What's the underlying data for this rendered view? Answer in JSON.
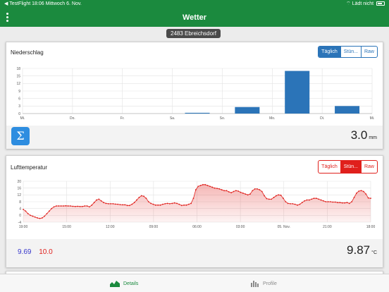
{
  "status": {
    "left": "◀ TestFlight  18:06  Mittwoch 6. Nov.",
    "right": "Lädt nicht"
  },
  "navbar": {
    "title": "Wetter"
  },
  "station": "2483 Ebreichsdorf",
  "precip": {
    "title": "Niederschlag",
    "segments": [
      "Täglich",
      "Stün...",
      "Raw"
    ],
    "total": "3.0",
    "unit": "mm",
    "sum_icon": "Σ"
  },
  "temp": {
    "title": "Lufttemperatur",
    "segments": [
      "Täglich",
      "Stün...",
      "Raw"
    ],
    "current": "9.87",
    "unit": "°C",
    "min": "9.69",
    "max": "10.0"
  },
  "tabs": {
    "details": "Details",
    "profile": "Profile"
  },
  "colors": {
    "brand": "#1b8a3e",
    "bars": "#2b74b8",
    "temp_line": "#e0201c"
  },
  "chart_data": [
    {
      "type": "bar",
      "categories": [
        "Mi.",
        "Do.",
        "Fr.",
        "Sa.",
        "So.",
        "Mo.",
        "Di.",
        "Mi."
      ],
      "values": [
        0,
        0,
        0,
        0,
        0.3,
        2.6,
        17,
        3.0
      ],
      "ylim": [
        0,
        18
      ],
      "yticks": [
        0,
        3,
        6,
        9,
        12,
        15,
        18
      ],
      "grid": true
    },
    {
      "type": "area",
      "x_ticks": [
        "19:00",
        "15:00",
        "12:00",
        "09:00",
        "06:00",
        "03:00",
        "05. Nov.",
        "21:00",
        "18:00"
      ],
      "ylim": [
        -4,
        20
      ],
      "yticks": [
        -4,
        0,
        4,
        8,
        12,
        16,
        20
      ],
      "values": [
        3.5,
        2.5,
        1,
        0,
        -0.5,
        -1,
        -1.5,
        -1.8,
        -1.5,
        -0.5,
        1,
        2.5,
        4,
        5,
        5.5,
        5.5,
        5.5,
        5.5,
        5.6,
        5.5,
        5.5,
        5.3,
        5.2,
        5.3,
        5.2,
        5.2,
        5.5,
        5.5,
        5,
        6,
        7.5,
        9,
        9.5,
        8.5,
        7.5,
        7,
        6.8,
        6.8,
        6.8,
        6.6,
        6.5,
        6.3,
        6.2,
        6.2,
        5.8,
        5.8,
        6.5,
        7.5,
        9,
        10.5,
        11.5,
        11.2,
        10,
        8,
        7,
        6.5,
        6,
        6,
        6,
        6.5,
        6.8,
        7,
        6.8,
        7,
        7.3,
        7,
        6.5,
        5.8,
        6,
        6,
        6.5,
        7,
        10,
        15,
        17,
        17.5,
        18,
        18,
        17.5,
        17,
        16.5,
        16,
        15.8,
        15.5,
        15,
        14.5,
        14.5,
        13.8,
        13.3,
        14,
        14.5,
        14.2,
        13.5,
        13,
        12.5,
        12,
        12.5,
        14.5,
        15.5,
        15.5,
        15,
        14,
        11.5,
        9.8,
        9.5,
        9.5,
        10.5,
        11.5,
        12,
        11.8,
        10,
        8,
        7,
        6.8,
        6.8,
        6.5,
        6,
        6.5,
        7.5,
        8.5,
        9,
        9,
        9.5,
        10,
        10,
        9.5,
        9,
        8.5,
        8,
        8,
        8,
        7.8,
        7.8,
        7.5,
        7.5,
        7.3,
        7.3,
        7.5,
        7,
        8,
        10.5,
        13,
        14.2,
        14.5,
        14,
        12.5,
        10.2,
        10
      ]
    }
  ]
}
